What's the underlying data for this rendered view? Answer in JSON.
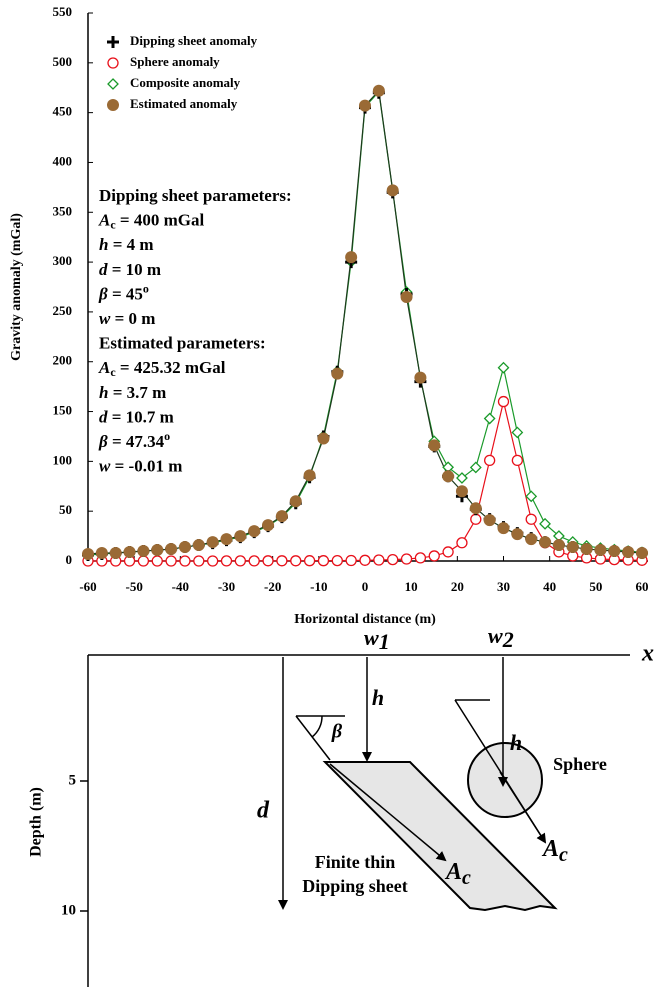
{
  "chart_data": {
    "type": "scatter",
    "xlabel": "Horizontal distance (m)",
    "ylabel": "Gravity anomaly (mGal)",
    "xlim": [
      -60,
      60
    ],
    "ylim": [
      0,
      550
    ],
    "xticks": [
      -60,
      -50,
      -40,
      -30,
      -20,
      -10,
      0,
      10,
      20,
      30,
      40,
      50,
      60
    ],
    "yticks": [
      0,
      50,
      100,
      150,
      200,
      250,
      300,
      350,
      400,
      450,
      500,
      550
    ],
    "x": [
      -60,
      -57,
      -54,
      -51,
      -48,
      -45,
      -42,
      -39,
      -36,
      -33,
      -30,
      -27,
      -24,
      -21,
      -18,
      -15,
      -12,
      -9,
      -6,
      -3,
      0,
      3,
      6,
      9,
      12,
      15,
      18,
      21,
      24,
      27,
      30,
      33,
      36,
      39,
      42,
      45,
      48,
      51,
      54,
      57,
      60
    ],
    "series": [
      {
        "name": "Dipping sheet anomaly",
        "color": "#000000",
        "marker": "plus",
        "line": false,
        "values": [
          6,
          7,
          8,
          9,
          10,
          11,
          12,
          14,
          16,
          18,
          21,
          24,
          29,
          35,
          44,
          58,
          84,
          125,
          190,
          300,
          455,
          470,
          370,
          268,
          180,
          115,
          85,
          65,
          52,
          42,
          34,
          28,
          23,
          19,
          16,
          14,
          12,
          11,
          10,
          9,
          8
        ]
      },
      {
        "name": "Sphere anomaly",
        "color": "#e8101a",
        "marker": "circle",
        "line": true,
        "values": [
          0,
          0,
          0,
          0,
          0,
          0,
          0,
          0,
          0,
          0,
          0.1,
          0.1,
          0.1,
          0.2,
          0.2,
          0.2,
          0.3,
          0.3,
          0.4,
          0.5,
          0.7,
          1,
          1.4,
          2,
          3.1,
          5.1,
          9.1,
          18.3,
          41.9,
          101,
          160,
          101,
          41.9,
          18.3,
          9.1,
          5.1,
          3.1,
          2,
          1.4,
          1,
          0.7
        ]
      },
      {
        "name": "Composite anomaly",
        "color": "#1a9a2a",
        "marker": "diamond",
        "line": true,
        "values": [
          6,
          7,
          8,
          9,
          10,
          11,
          12,
          14,
          16,
          18,
          21.1,
          24.1,
          29.1,
          35.2,
          44.2,
          58.2,
          84.3,
          125.3,
          190.4,
          300.5,
          455.7,
          471,
          371.4,
          270,
          183.1,
          120.1,
          94.1,
          83.3,
          93.9,
          143,
          194,
          129,
          64.9,
          37.3,
          25.1,
          19.1,
          15.1,
          13,
          11.4,
          10,
          8.7
        ]
      },
      {
        "name": "Estimated anomaly",
        "color": "#9a6a35",
        "marker": "dot",
        "line": true,
        "line_color": "#1d3a1d",
        "values": [
          7,
          8,
          8,
          9,
          10,
          11,
          12,
          14,
          16,
          19,
          22,
          25,
          30,
          36,
          45,
          60,
          86,
          123,
          188,
          305,
          457,
          472,
          372,
          265,
          184,
          116,
          85,
          70,
          53,
          41,
          33,
          27,
          22,
          19,
          16,
          14,
          12,
          11,
          10,
          9,
          8
        ]
      }
    ],
    "legend": "upper left",
    "annotations": [
      {
        "text": "Dipping sheet parameters:"
      },
      {
        "symbol": "A",
        "sub": "c",
        "text": " = 400 mGal"
      },
      {
        "symbol": "h",
        "text": " = 4 m"
      },
      {
        "symbol": "d",
        "text": " = 10 m"
      },
      {
        "symbol": "β",
        "text": " = 45",
        "sup": "o"
      },
      {
        "symbol": "w",
        "text": " = 0 m"
      },
      {
        "text": "Estimated parameters:"
      },
      {
        "symbol": "A",
        "sub": "c",
        "text": " = 425.32 mGal"
      },
      {
        "symbol": "h",
        "text": " = 3.7 m"
      },
      {
        "symbol": "d",
        "text": " = 10.7 m"
      },
      {
        "symbol": "β",
        "text": " = 47.34",
        "sup": "o"
      },
      {
        "symbol": "w",
        "text": " = -0.01 m"
      }
    ]
  },
  "diagram": {
    "depth_label": "Depth (m)",
    "depth_ticks": [
      "5",
      "10"
    ],
    "x_axis": "x",
    "w1": {
      "symbol": "w",
      "sub": "1"
    },
    "w2": {
      "symbol": "w",
      "sub": "2"
    },
    "h1": "h",
    "h2": "h",
    "d": "d",
    "beta": "β",
    "sphere": "Sphere",
    "ac_sheet": {
      "symbol": "A",
      "sub": "c"
    },
    "ac_sphere": {
      "symbol": "A",
      "sub": "c"
    },
    "sheet_label": [
      "Finite thin",
      "Dipping sheet"
    ]
  }
}
